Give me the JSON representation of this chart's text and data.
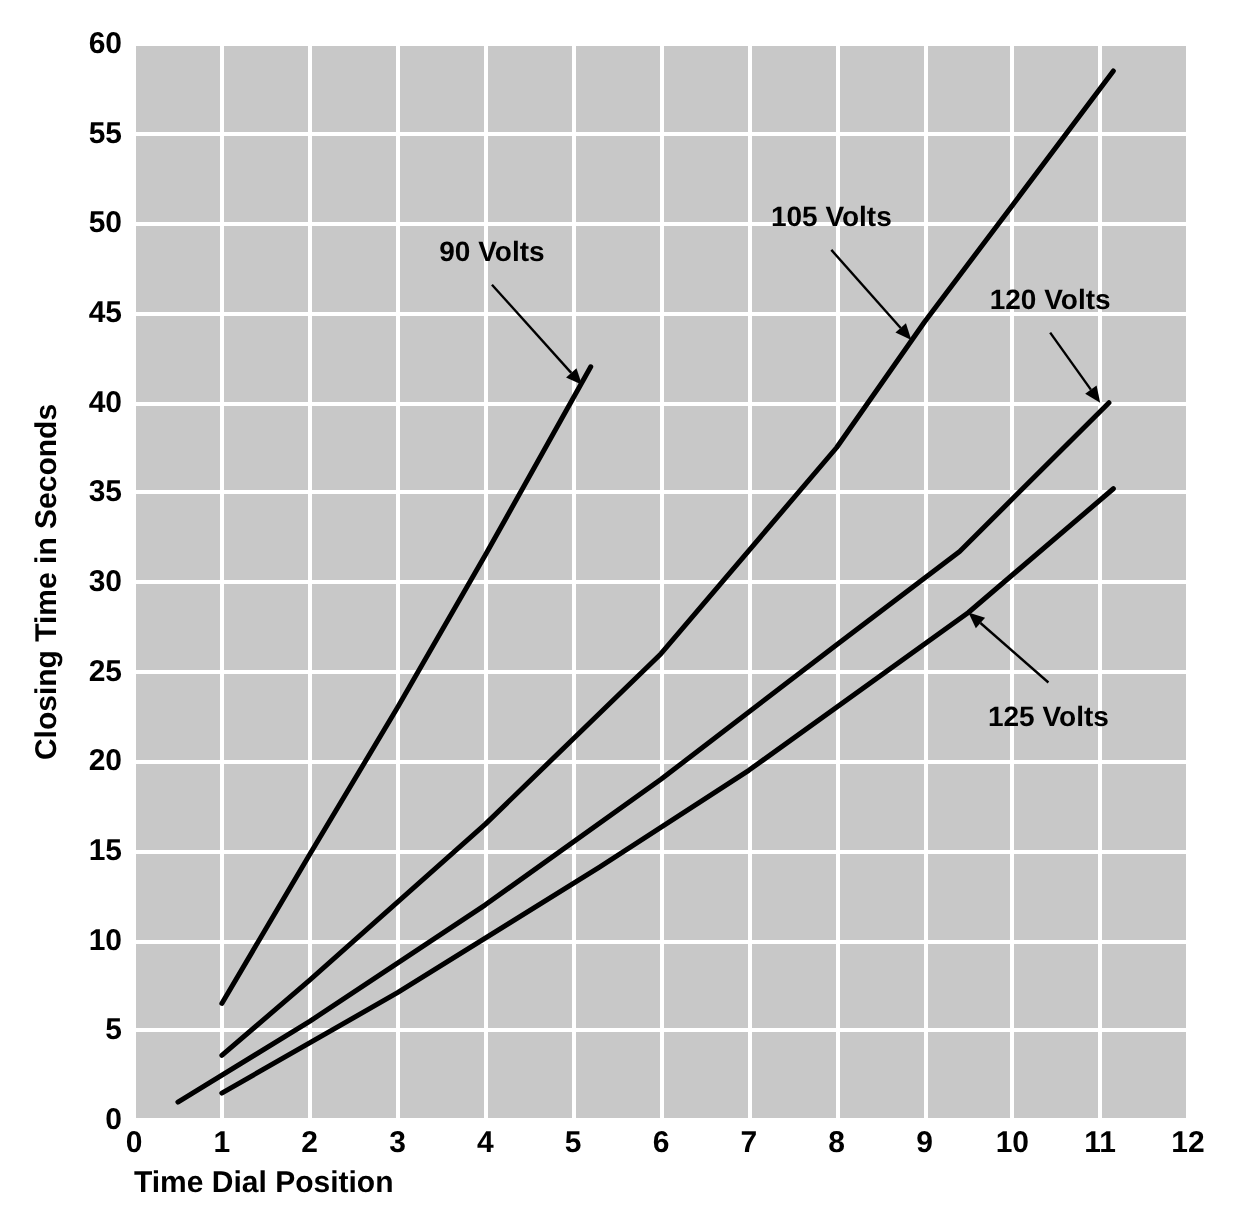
{
  "chart_data": {
    "type": "line",
    "xlabel": "Time Dial Position",
    "ylabel": "Closing Time in Seconds",
    "xlim": [
      0,
      12
    ],
    "xticks": [
      0,
      1,
      2,
      3,
      4,
      5,
      6,
      7,
      8,
      9,
      10,
      11,
      12
    ],
    "ylim": [
      0,
      60
    ],
    "yticks": [
      0,
      5,
      10,
      15,
      20,
      25,
      30,
      35,
      40,
      45,
      50,
      55,
      60
    ],
    "grid": true,
    "marker": "none",
    "line_style": "solid",
    "series": [
      {
        "color": "#000000",
        "x": [
          1,
          2,
          3,
          4,
          5.2
        ],
        "values": [
          6.5,
          14.8,
          23,
          31.5,
          42
        ]
      },
      {
        "color": "#000000",
        "x": [
          1,
          2,
          4,
          6,
          8,
          9,
          10,
          11.15
        ],
        "values": [
          3.6,
          7.8,
          16.5,
          26,
          37.5,
          44.5,
          51,
          58.5
        ]
      },
      {
        "color": "#000000",
        "x": [
          0.5,
          2,
          4,
          6,
          8,
          9.4,
          11.1
        ],
        "values": [
          1,
          5.5,
          12,
          19,
          26.5,
          31.7,
          40
        ]
      },
      {
        "color": "#000000",
        "x": [
          1,
          3,
          5.3,
          7,
          9.5,
          11.15
        ],
        "values": [
          1.5,
          7.1,
          14.1,
          19.5,
          28.3,
          35.2
        ]
      }
    ],
    "annotations": [
      {
        "text": "90 Volts",
        "x": 5.1,
        "y": 41
      },
      {
        "text": "105 Volts",
        "x": 8.85,
        "y": 43.5
      },
      {
        "text": "120 Volts",
        "x": 11,
        "y": 40
      },
      {
        "text": "125 Volts",
        "x": 9.5,
        "y": 28.3
      }
    ]
  }
}
